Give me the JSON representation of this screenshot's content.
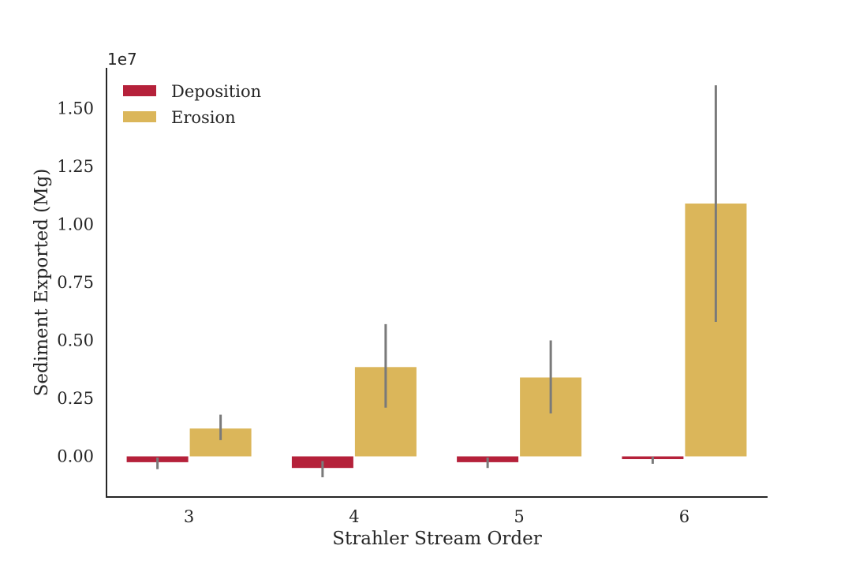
{
  "chart_data": {
    "type": "bar",
    "xlabel": "Strahler Stream Order",
    "ylabel": "Sediment Exported (Mg)",
    "y_offset_label": "1e7",
    "categories": [
      "3",
      "4",
      "5",
      "6"
    ],
    "ylim": [
      -1750000,
      16800000
    ],
    "yticks": [
      0,
      2500000,
      5000000,
      7500000,
      10000000,
      12500000,
      15000000
    ],
    "ytick_labels": [
      "0.00",
      "0.25",
      "0.50",
      "0.75",
      "1.00",
      "1.25",
      "1.50"
    ],
    "grid": false,
    "legend_position": "top-left",
    "series": [
      {
        "name": "Deposition",
        "color": "#b5213a",
        "values": [
          -250000,
          -500000,
          -250000,
          -120000
        ],
        "error_low": [
          -550000,
          -900000,
          -500000,
          -320000
        ],
        "error_high": [
          -50000,
          -200000,
          -50000,
          -20000
        ]
      },
      {
        "name": "Erosion",
        "color": "#dbb65a",
        "values": [
          1200000,
          3850000,
          3400000,
          10900000
        ],
        "error_low": [
          700000,
          2100000,
          1850000,
          5800000
        ],
        "error_high": [
          1800000,
          5700000,
          5000000,
          16000000
        ]
      }
    ],
    "error_bar_color": "#7a7a7a"
  }
}
